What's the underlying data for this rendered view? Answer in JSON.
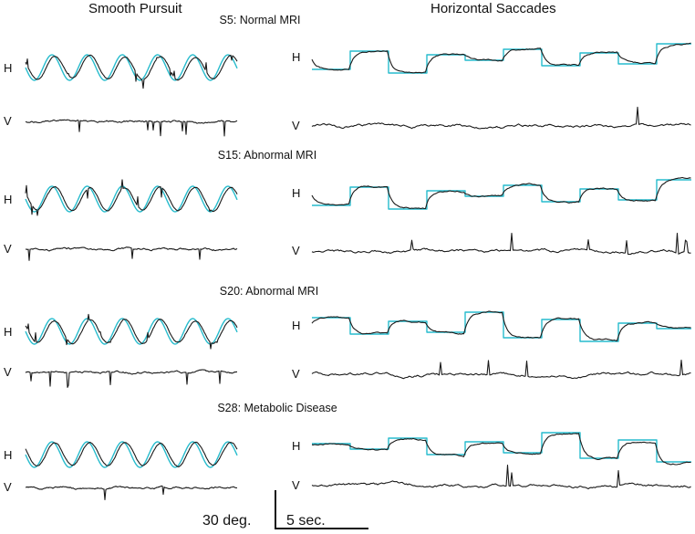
{
  "chart_data": {
    "type": "line",
    "columns": [
      "Smooth Pursuit",
      "Horizontal Saccades"
    ],
    "channels": [
      "H",
      "V"
    ],
    "subjects": [
      {
        "label": "S5: Normal MRI",
        "seed": 5
      },
      {
        "label": "S15: Abnormal MRI",
        "seed": 15
      },
      {
        "label": "S20: Abnormal MRI",
        "seed": 20
      },
      {
        "label": "S28: Metabolic Disease",
        "seed": 28
      }
    ],
    "scale_bar": {
      "amplitude_label": "30 deg.",
      "time_label": "5 sec."
    },
    "colors": {
      "eye_trace": "#1a1a1a",
      "target": "#27bccd"
    }
  }
}
